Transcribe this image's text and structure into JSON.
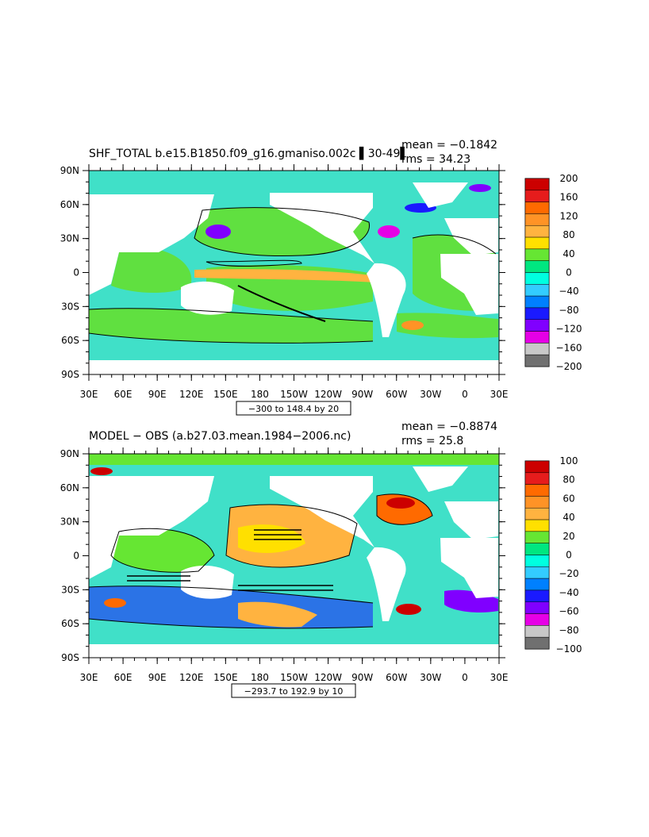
{
  "panels": [
    {
      "title": "SHF_TOTAL b.e15.B1850.f09_g16.gmaniso.002c ▌30-49▌",
      "mean": "mean = −0.1842",
      "rms": "rms = 34.23",
      "contour_info": "−300 to 148.4 by 20",
      "colorbar_labels": [
        "200",
        "160",
        "120",
        "80",
        "40",
        "0",
        "−40",
        "−80",
        "−120",
        "−160",
        "−200"
      ],
      "colorbar_colors": [
        "#cc0000",
        "#e61c1c",
        "#ff6a00",
        "#ff9326",
        "#ffb340",
        "#ffe000",
        "#66e633",
        "#00e680",
        "#00ffe0",
        "#33ccff",
        "#0080ff",
        "#1a1aff",
        "#8000ff",
        "#e600e6",
        "#c8c8c8",
        "#707070"
      ]
    },
    {
      "title": "MODEL − OBS (a.b27.03.mean.1984−2006.nc)",
      "mean": "mean = −0.8874",
      "rms": "rms = 25.8",
      "contour_info": "−293.7 to 192.9 by 10",
      "colorbar_labels": [
        "100",
        "80",
        "60",
        "40",
        "20",
        "0",
        "−20",
        "−40",
        "−60",
        "−80",
        "−100"
      ],
      "colorbar_colors": [
        "#cc0000",
        "#e61c1c",
        "#ff6a00",
        "#ff9326",
        "#ffb340",
        "#ffe000",
        "#66e633",
        "#00e680",
        "#00ffe0",
        "#33ccff",
        "#0080ff",
        "#1a1aff",
        "#8000ff",
        "#e600e6",
        "#c8c8c8",
        "#707070"
      ]
    }
  ],
  "lat_labels": [
    "90N",
    "60N",
    "30N",
    "0",
    "30S",
    "60S",
    "90S"
  ],
  "lon_labels": [
    "30E",
    "60E",
    "90E",
    "120E",
    "150E",
    "180",
    "150W",
    "120W",
    "90W",
    "60W",
    "30W",
    "0",
    "30E"
  ],
  "ocean_base_color": "#40e0c8",
  "land_color": "#ffffff"
}
